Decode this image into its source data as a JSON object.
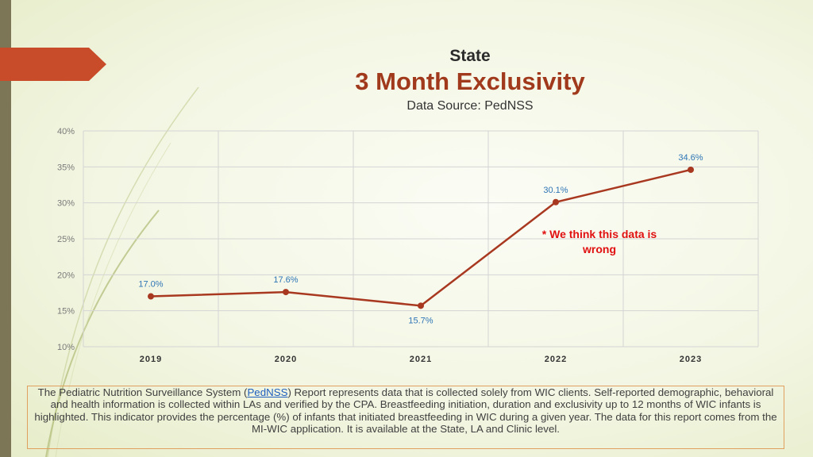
{
  "header": {
    "region": "State",
    "title": "3 Month Exclusivity",
    "source": "Data Source: PedNSS"
  },
  "colors": {
    "line": "#a8381f",
    "point_label": "#2e75b6",
    "annotation": "#e01010",
    "accent_tab": "#c84b2a",
    "grid": "#d4d4d4"
  },
  "chart_data": {
    "type": "line",
    "categories": [
      "2019",
      "2020",
      "2021",
      "2022",
      "2023"
    ],
    "values": [
      17.0,
      17.6,
      15.7,
      30.1,
      34.6
    ],
    "data_labels": [
      "17.0%",
      "17.6%",
      "15.7%",
      "30.1%",
      "34.6%"
    ],
    "y_ticks": [
      "10%",
      "15%",
      "20%",
      "25%",
      "30%",
      "35%",
      "40%"
    ],
    "ylim": [
      10,
      40
    ],
    "grid": true,
    "annotation": {
      "line1": "* We think this data is",
      "line2": "wrong"
    }
  },
  "footnote": {
    "before_link": "The Pediatric Nutrition Surveillance System (",
    "link_text": "PedNSS",
    "after_link": ") Report represents data that is collected solely from WIC clients. Self-reported demographic, behavioral and health information is collected within LAs and verified by the CPA. Breastfeeding initiation, duration and exclusivity up to 12 months of WIC infants is highlighted. This indicator provides the percentage (%) of infants that initiated breastfeeding in WIC during a given year. The data for this report comes from the MI-WIC application. It is available at the State, LA and Clinic level."
  }
}
